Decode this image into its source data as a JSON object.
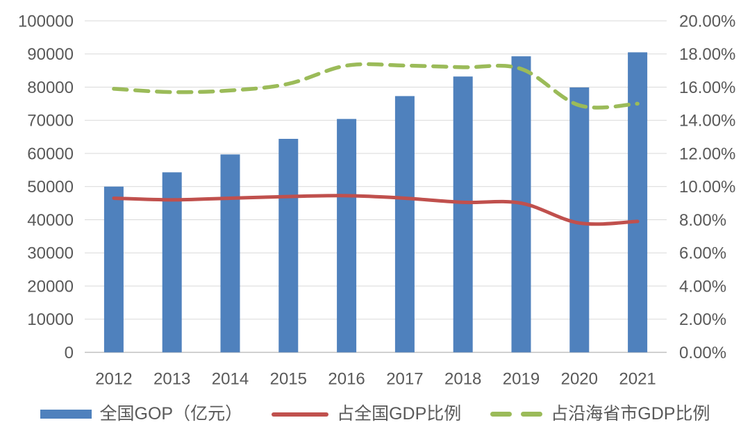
{
  "chart_data": {
    "type": "combo-bar-line",
    "title": "",
    "categories": [
      "2012",
      "2013",
      "2014",
      "2015",
      "2016",
      "2017",
      "2018",
      "2019",
      "2020",
      "2021"
    ],
    "series": [
      {
        "name": "全国GOP（亿元）",
        "type": "bar",
        "axis": "left",
        "color": "#4f81bd",
        "values": [
          50000,
          54300,
          59700,
          64400,
          70400,
          77300,
          83200,
          89300,
          79900,
          90500
        ]
      },
      {
        "name": "占全国GDP比例",
        "type": "line",
        "axis": "right",
        "color": "#c0504d",
        "values": [
          9.3,
          9.2,
          9.3,
          9.4,
          9.45,
          9.3,
          9.05,
          9.0,
          7.8,
          7.9
        ]
      },
      {
        "name": "占沿海省市GDP比例",
        "type": "dashed-line",
        "axis": "right",
        "color": "#9bbb59",
        "values": [
          15.9,
          15.7,
          15.8,
          16.2,
          17.3,
          17.3,
          17.2,
          17.1,
          14.9,
          15.0
        ]
      }
    ],
    "left_axis": {
      "min": 0,
      "max": 100000,
      "step": 10000,
      "tick_labels": [
        "0",
        "10000",
        "20000",
        "30000",
        "40000",
        "50000",
        "60000",
        "70000",
        "80000",
        "90000",
        "100000"
      ]
    },
    "right_axis": {
      "min": 0,
      "max": 20,
      "step": 2,
      "tick_labels": [
        "0.00%",
        "2.00%",
        "4.00%",
        "6.00%",
        "8.00%",
        "10.00%",
        "12.00%",
        "14.00%",
        "16.00%",
        "18.00%",
        "20.00%"
      ]
    },
    "grid": true,
    "legend_position": "bottom",
    "text_color": "#595959",
    "grid_color": "#d9d9d9",
    "axis_line_color": "#bfbfbf",
    "background_color": "#ffffff"
  }
}
